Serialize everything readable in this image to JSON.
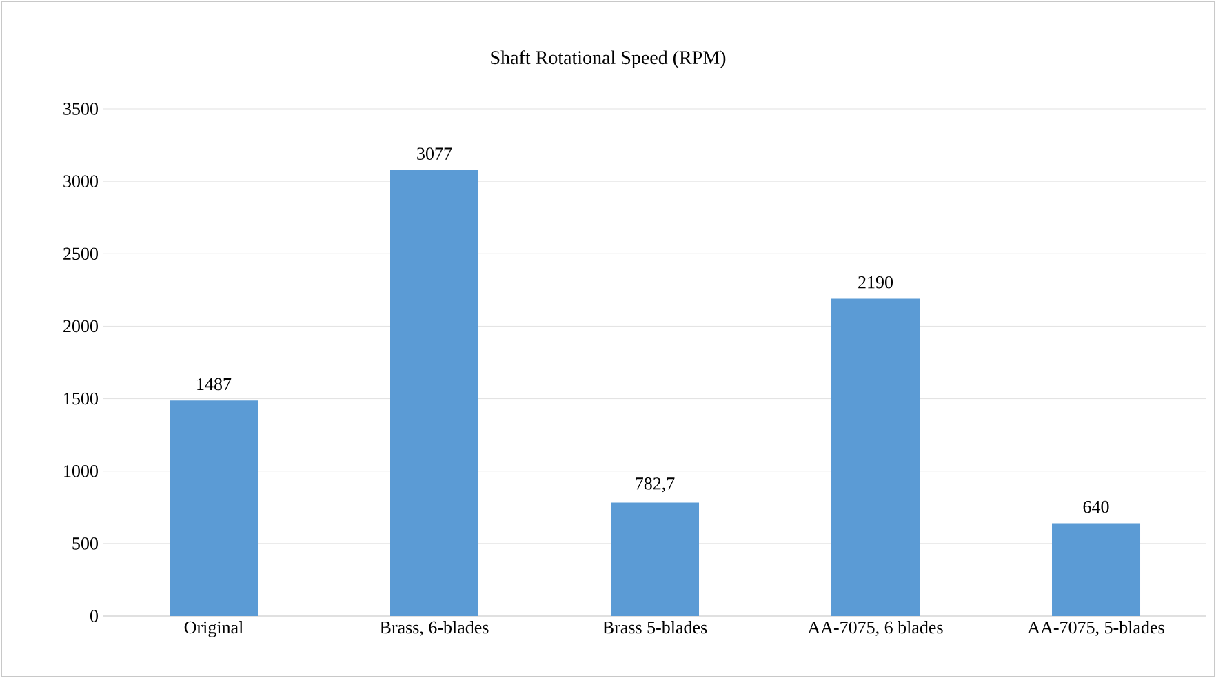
{
  "chart_data": {
    "type": "bar",
    "title": "Shaft Rotational Speed (RPM)",
    "categories": [
      "Original",
      "Brass, 6-blades",
      "Brass 5-blades",
      "AA-7075, 6 blades",
      "AA-7075, 5-blades"
    ],
    "values": [
      1487,
      3077,
      782.7,
      2190,
      640
    ],
    "value_labels": [
      "1487",
      "3077",
      "782,7",
      "2190",
      "640"
    ],
    "color": "#5b9bd5",
    "ylim": [
      0,
      3500
    ],
    "yticks": [
      0,
      500,
      1000,
      1500,
      2000,
      2500,
      3000,
      3500
    ],
    "grid": "y"
  }
}
